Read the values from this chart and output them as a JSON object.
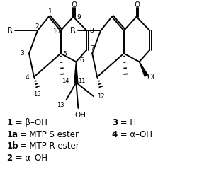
{
  "background_color": "#ffffff",
  "text_color": "#000000",
  "legend_lines": [
    {
      "text": "1",
      "suffix": " = β–OH"
    },
    {
      "text": "1a",
      "suffix": " = MTP S ester"
    },
    {
      "text": "1b",
      "suffix": " = MTP R ester"
    },
    {
      "text": "2",
      "suffix": " = α–OH"
    }
  ],
  "legend_lines_right": [
    {
      "text": "3",
      "suffix": " = H"
    },
    {
      "text": "4",
      "suffix": " = α–OH"
    }
  ],
  "figsize": [
    2.95,
    2.63
  ],
  "dpi": 100
}
